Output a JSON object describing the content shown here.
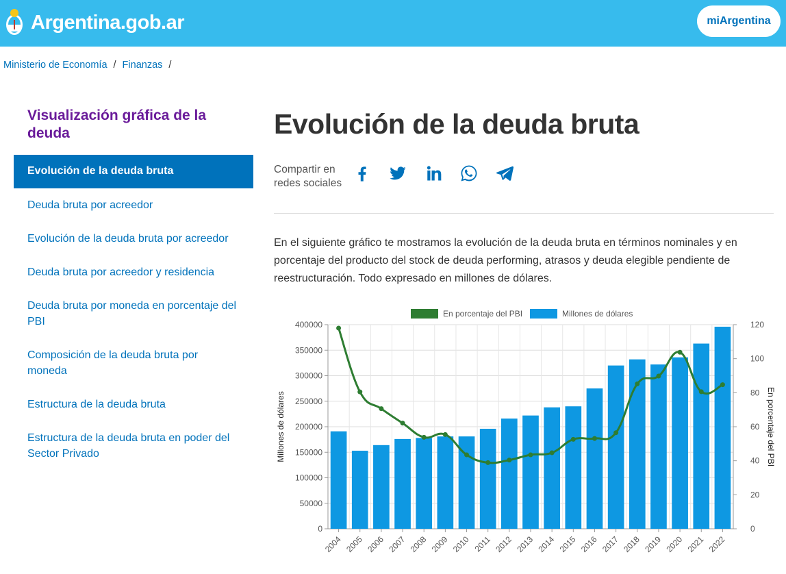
{
  "header": {
    "brand": "Argentina.gob.ar",
    "login_button": "miArgentina",
    "accent_color": "#37bbed"
  },
  "breadcrumb": [
    {
      "label": "Ministerio de Economía"
    },
    {
      "label": "Finanzas"
    }
  ],
  "breadcrumb_separator": "/",
  "sidebar": {
    "title": "Visualización gráfica de la deuda",
    "items": [
      {
        "label": "Evolución de la deuda bruta",
        "active": true
      },
      {
        "label": "Deuda bruta por acreedor",
        "active": false
      },
      {
        "label": "Evolución de la deuda bruta por acreedor",
        "active": false
      },
      {
        "label": "Deuda bruta por acreedor y residencia",
        "active": false
      },
      {
        "label": "Deuda bruta por moneda en porcentaje del PBI",
        "active": false
      },
      {
        "label": "Composición de la deuda bruta por moneda",
        "active": false
      },
      {
        "label": "Estructura de la deuda bruta",
        "active": false
      },
      {
        "label": "Estructura de la deuda bruta en poder del Sector Privado",
        "active": false
      }
    ]
  },
  "main": {
    "title": "Evolución de la deuda bruta",
    "share_label": "Compartir en redes sociales",
    "share_icons": [
      "facebook-icon",
      "twitter-icon",
      "linkedin-icon",
      "whatsapp-icon",
      "telegram-icon"
    ],
    "intro": "En el siguiente gráfico te mostramos la evolución de la deuda bruta en términos nominales y en porcentaje del producto del stock de deuda performing, atrasos y deuda elegible pendiente de reestructuración. Todo expresado en millones de dólares."
  },
  "chart_data": {
    "type": "bar",
    "categories": [
      "2004",
      "2005",
      "2006",
      "2007",
      "2008",
      "2009",
      "2010",
      "2011",
      "2012",
      "2013",
      "2014",
      "2015",
      "2016",
      "2017",
      "2018",
      "2019",
      "2020",
      "2021",
      "2022"
    ],
    "series": [
      {
        "name": "En porcentaje del PBI",
        "type": "line",
        "axis": "right",
        "color": "#2e7d32",
        "values": [
          118,
          80.5,
          70.6,
          62.1,
          53.8,
          55.4,
          43.5,
          38.9,
          40.4,
          43.5,
          44.7,
          52.6,
          53.1,
          56.5,
          85.2,
          89.8,
          103.8,
          80.6,
          84.7
        ]
      },
      {
        "name": "Millones de dólares",
        "type": "bar",
        "axis": "left",
        "color": "#0e98e2",
        "values": [
          191000,
          153000,
          164000,
          176000,
          178000,
          181000,
          181000,
          196000,
          216000,
          222000,
          238000,
          240000,
          275000,
          320000,
          332000,
          322000,
          336000,
          363000,
          396000
        ]
      }
    ],
    "ylabel": "Millones de dólares",
    "y2label": "En porcentaje del PBI",
    "ylim": [
      0,
      400000
    ],
    "y2lim": [
      0,
      120
    ],
    "yticks": [
      "0",
      "50000",
      "100000",
      "150000",
      "200000",
      "250000",
      "300000",
      "350000",
      "400000"
    ],
    "y2ticks": [
      "0",
      "20",
      "40",
      "60",
      "80",
      "100",
      "120"
    ],
    "grid": true,
    "legend_position": "top"
  }
}
